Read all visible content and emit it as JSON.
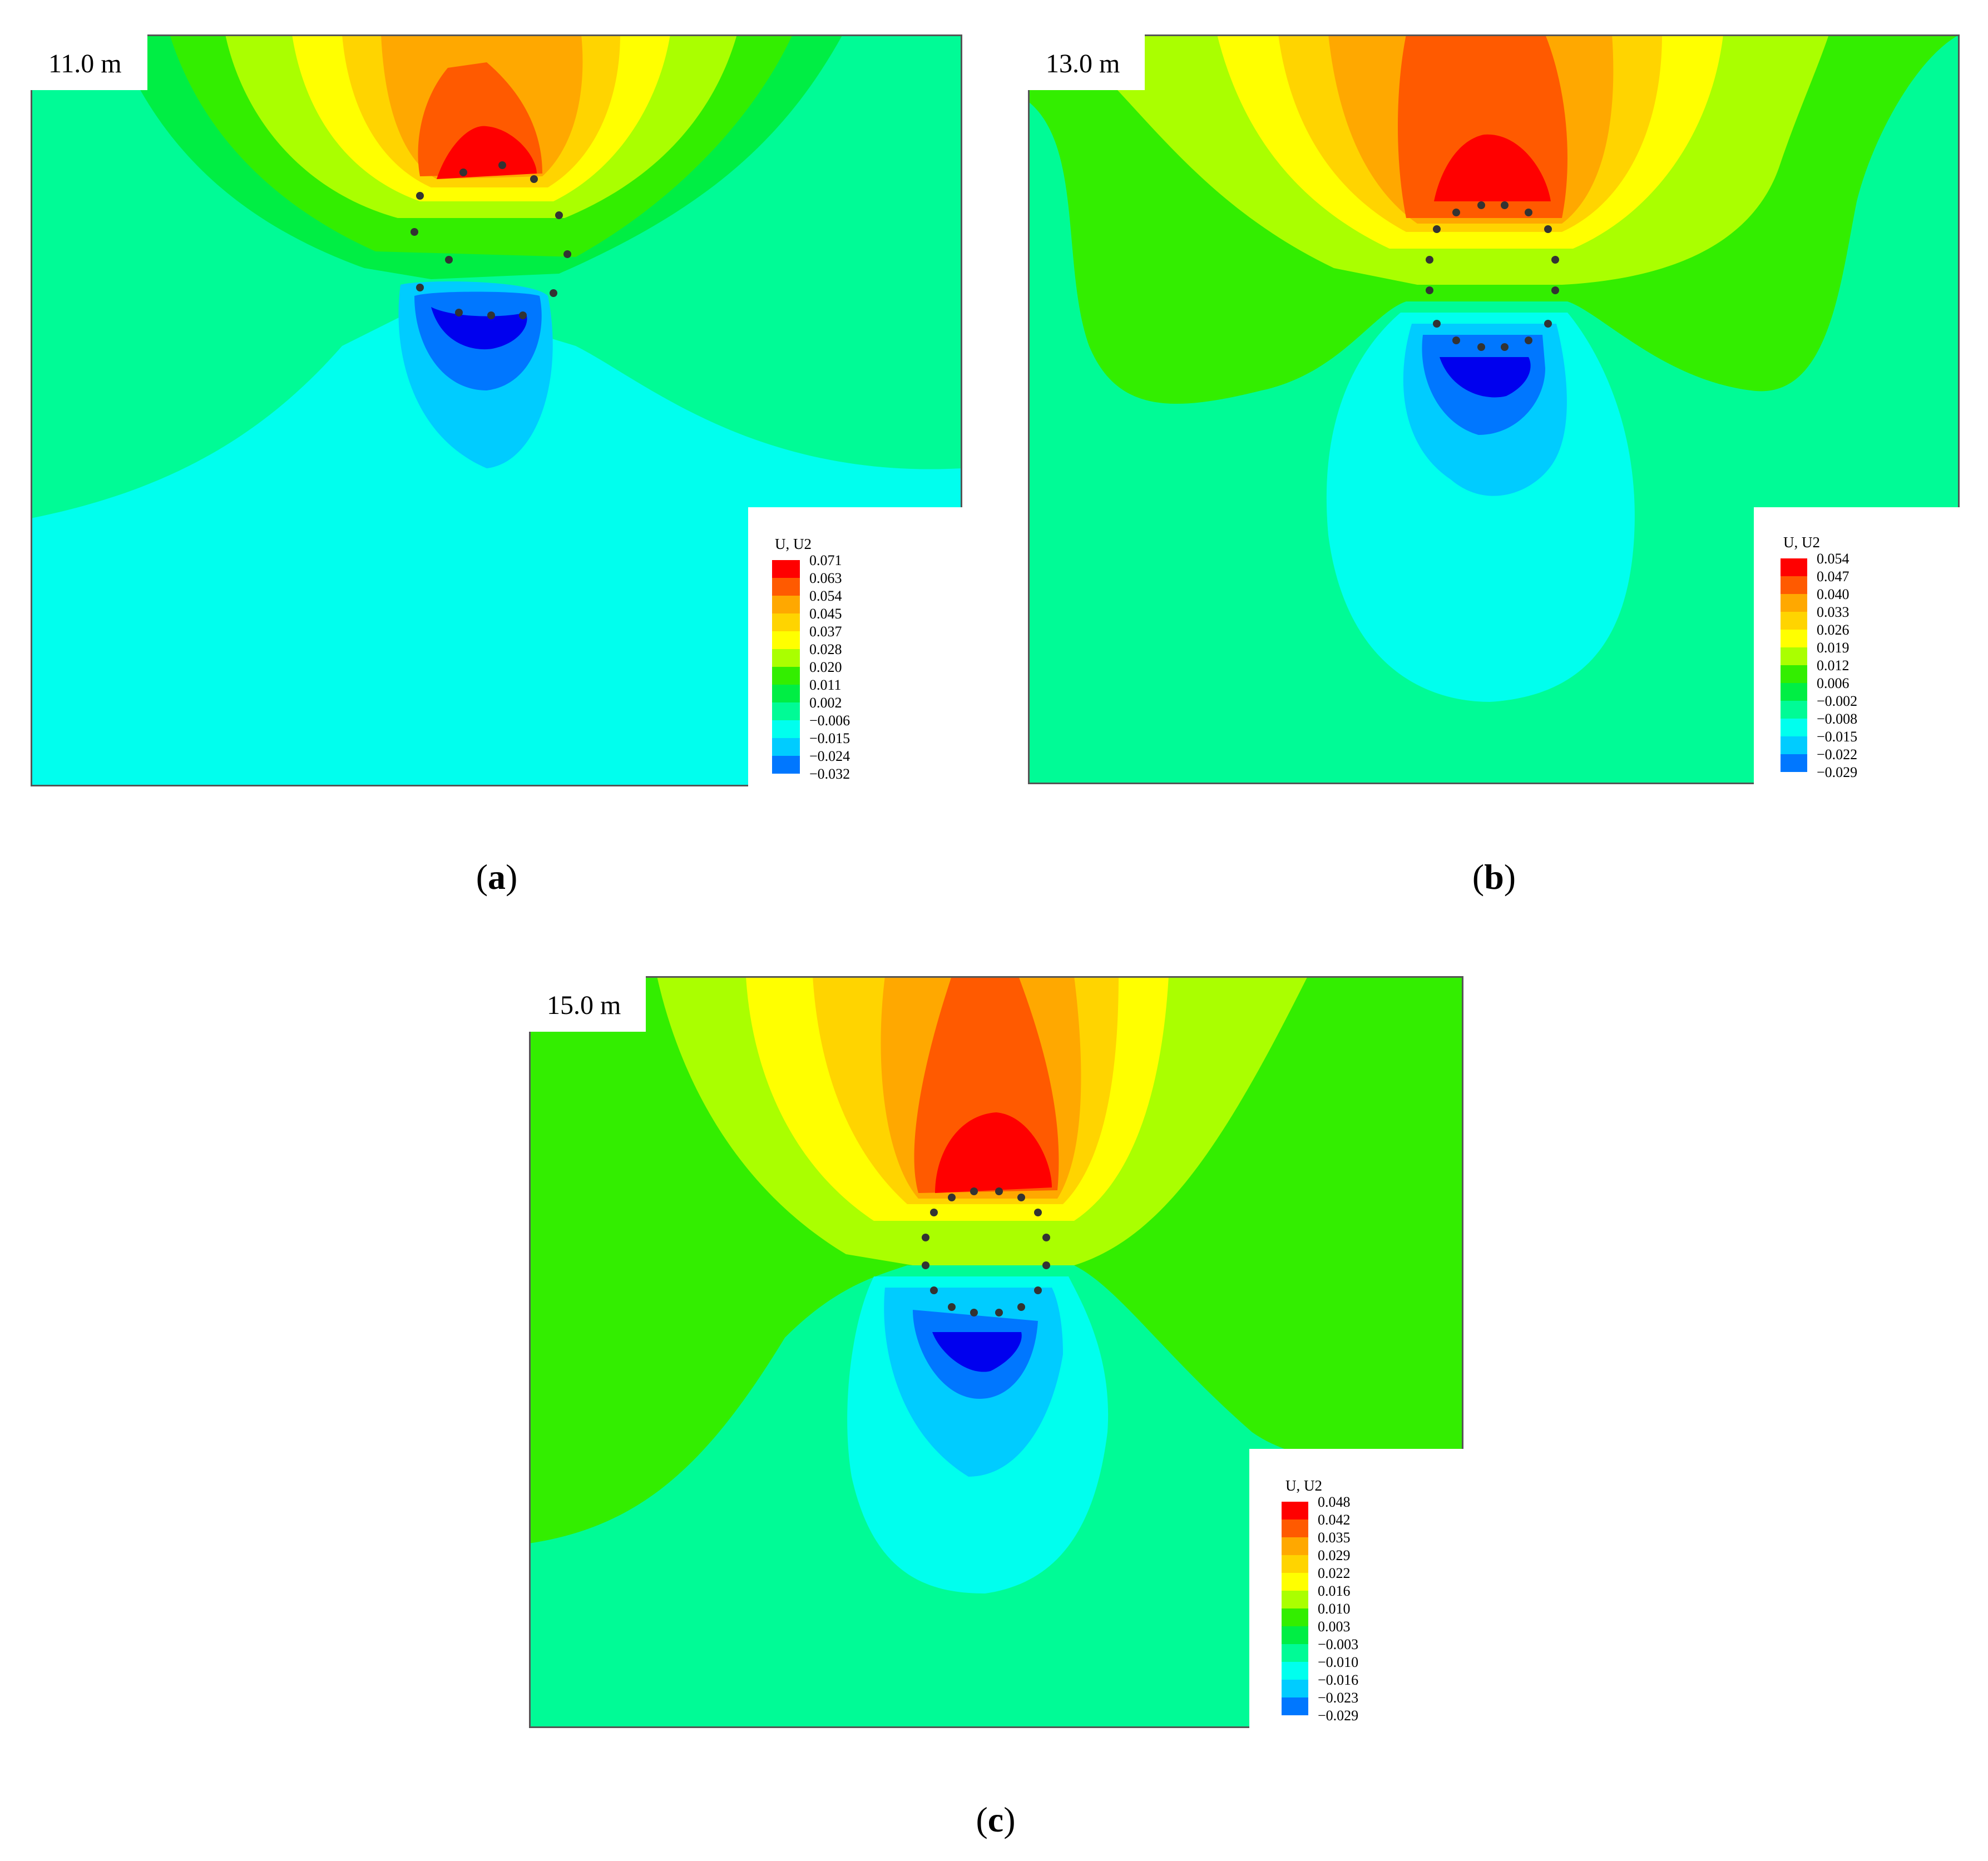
{
  "panels": [
    {
      "id": "a",
      "depth_label": "11.0 m",
      "caption_letter": "a",
      "legend_title": "U, U2",
      "legend_values": [
        "0.071",
        "0.063",
        "0.054",
        "0.045",
        "0.037",
        "0.028",
        "0.020",
        "0.011",
        "0.002",
        "−0.006",
        "−0.015",
        "−0.024",
        "−0.032"
      ]
    },
    {
      "id": "b",
      "depth_label": "13.0 m",
      "caption_letter": "b",
      "legend_title": "U, U2",
      "legend_values": [
        "0.054",
        "0.047",
        "0.040",
        "0.033",
        "0.026",
        "0.019",
        "0.012",
        "0.006",
        "−0.002",
        "−0.008",
        "−0.015",
        "−0.022",
        "−0.029"
      ]
    },
    {
      "id": "c",
      "depth_label": "15.0 m",
      "caption_letter": "c",
      "legend_title": "U, U2",
      "legend_values": [
        "0.048",
        "0.042",
        "0.035",
        "0.029",
        "0.022",
        "0.016",
        "0.010",
        "0.003",
        "−0.003",
        "−0.010",
        "−0.016",
        "−0.023",
        "−0.029"
      ]
    }
  ],
  "colors": {
    "red": "#ff0000",
    "orange_red": "#ff5a00",
    "orange": "#ffa800",
    "yellow_orange": "#ffd400",
    "yellow": "#ffff00",
    "yellow_green": "#aaff00",
    "green": "#33ee00",
    "mid_green": "#00ee44",
    "sea_green": "#00fb96",
    "cyan": "#00ffee",
    "sky": "#00ccff",
    "blue_light": "#0077ff",
    "blue": "#0000ee"
  }
}
